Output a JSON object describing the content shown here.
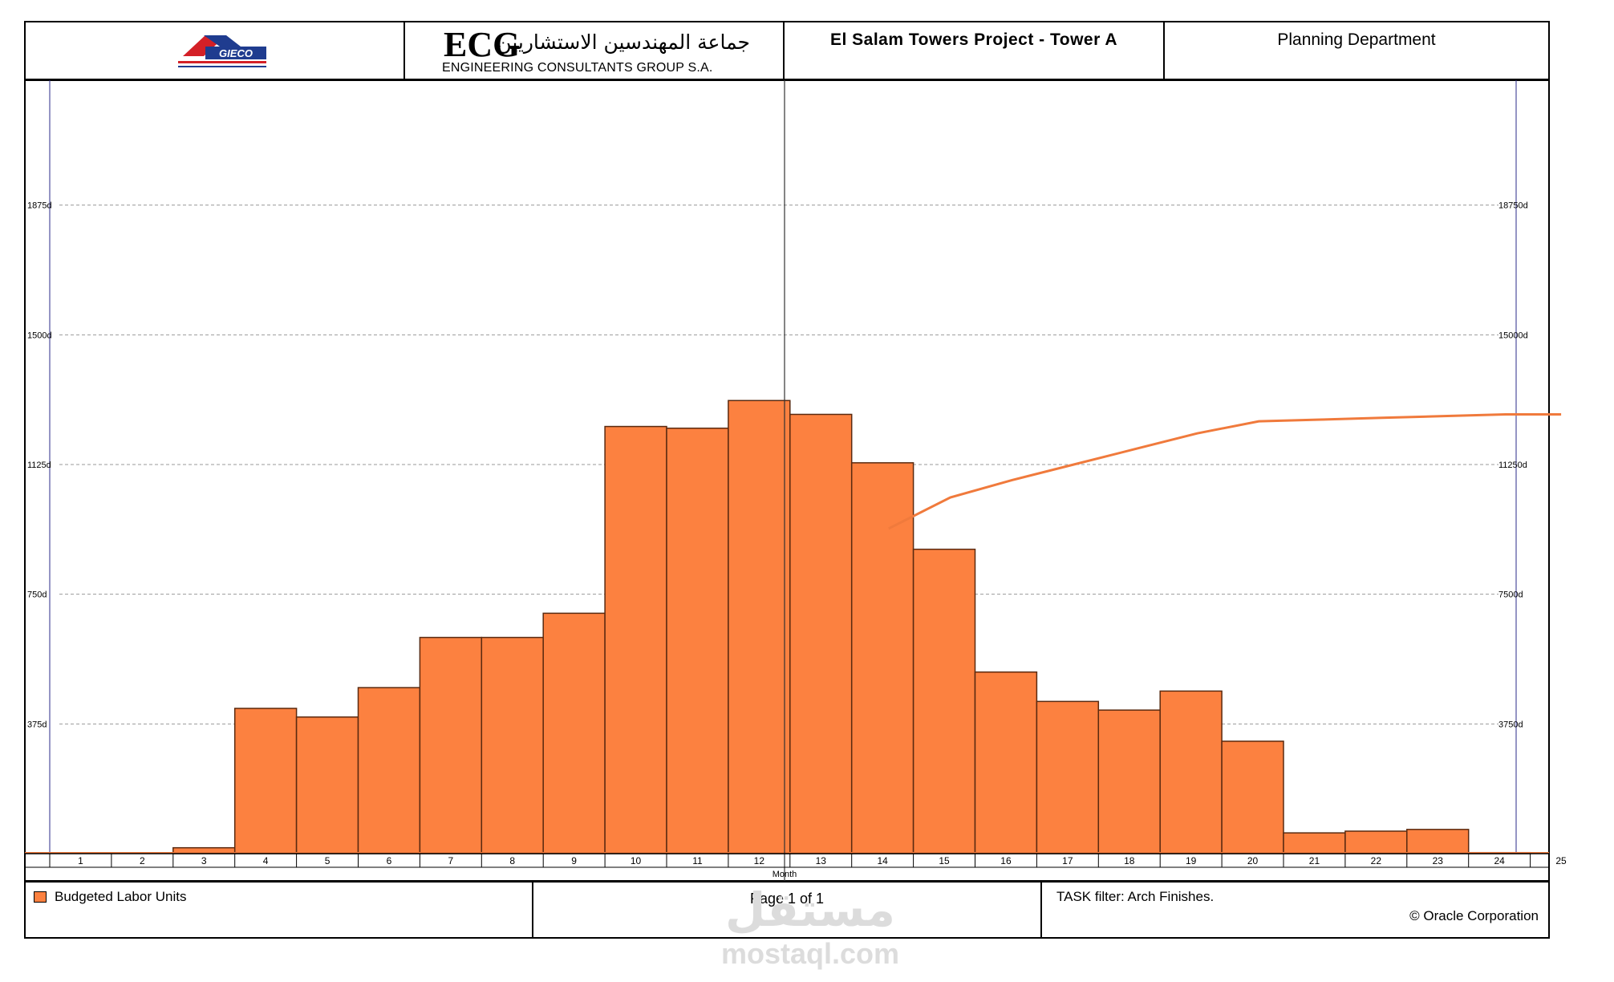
{
  "header": {
    "logo_gieco_text": "GIECO",
    "logo_ecg_text": "ECG",
    "logo_ecg_arabic": "جماعة المهندسين الاستشاريين",
    "logo_ecg_subtitle": "ENGINEERING CONSULTANTS GROUP S.A.",
    "project_title": "El Salam Towers Project - Tower A",
    "department": "Planning Department"
  },
  "footer": {
    "legend_label": "Budgeted Labor Units",
    "page_label": "Page 1 of 1",
    "filter_label": "TASK filter: Arch Finishes.",
    "copyright": "© Oracle Corporation"
  },
  "watermark": {
    "arabic": "مستقل",
    "latin": "mostaql.com"
  },
  "colors": {
    "bar_fill": "#fc8140",
    "bar_stroke": "#5a2a10",
    "line": "#f07a3c",
    "grid": "#9a9a9a",
    "frame": "#000000",
    "marker": "#2b2b8a"
  },
  "chart_data": {
    "type": "bar",
    "xlabel": "Month",
    "categories": [
      "1",
      "2",
      "3",
      "4",
      "5",
      "6",
      "7",
      "8",
      "9",
      "10",
      "11",
      "12",
      "13",
      "14",
      "15",
      "16",
      "17",
      "18",
      "19",
      "20",
      "21",
      "22",
      "23",
      "24",
      "25"
    ],
    "series": [
      {
        "name": "Budgeted Labor Units",
        "type": "bar",
        "values": [
          0,
          0,
          17,
          420,
          395,
          480,
          625,
          625,
          695,
          1235,
          1230,
          1310,
          1270,
          1130,
          880,
          525,
          440,
          415,
          470,
          325,
          60,
          65,
          70,
          3,
          0
        ]
      },
      {
        "type": "line",
        "axis": "right",
        "x": [
          14.6,
          15.6,
          16.6,
          17.6,
          18.6,
          19.6,
          20.6,
          21.6,
          22.6,
          23.6,
          24.6,
          25.5
        ],
        "values": [
          9400,
          10300,
          10800,
          11250,
          11700,
          12150,
          12500,
          12550,
          12600,
          12650,
          12700,
          12700
        ]
      }
    ],
    "left_axis": {
      "ticks": [
        "375d",
        "750d",
        "1125d",
        "1500d",
        "1875d"
      ],
      "values": [
        375,
        750,
        1125,
        1500,
        1875
      ],
      "ylim": [
        0,
        2250
      ]
    },
    "right_axis": {
      "ticks": [
        "3750d",
        "7500d",
        "11250d",
        "15000d",
        "18750d"
      ],
      "values": [
        3750,
        7500,
        11250,
        15000,
        18750
      ],
      "ylim": [
        0,
        22500
      ]
    },
    "grid": true
  }
}
